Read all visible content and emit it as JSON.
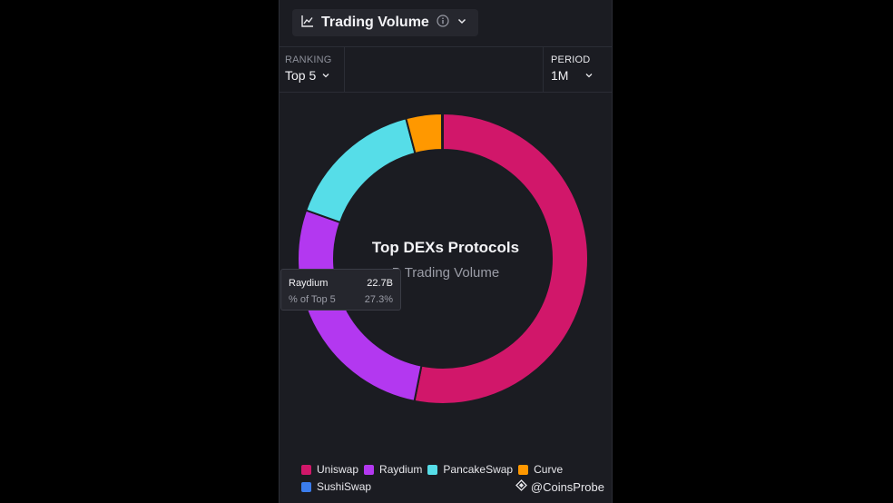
{
  "header": {
    "metric_label": "Trading Volume"
  },
  "controls": {
    "ranking_caption": "RANKING",
    "ranking_value": "Top 5",
    "period_caption": "PERIOD",
    "period_value": "1M"
  },
  "chart_data": {
    "type": "pie",
    "title": "Top DEXs Protocols",
    "subtitle": "B Trading Volume",
    "categories": [
      "Uniswap",
      "Raydium",
      "PancakeSwap",
      "Curve",
      "SushiSwap"
    ],
    "values": [
      53.2,
      27.3,
      15.5,
      4.0,
      0.1
    ],
    "colors": [
      "#d1176a",
      "#b338f0",
      "#56dde8",
      "#ff9800",
      "#3b7ded"
    ],
    "legend_position": "bottom"
  },
  "tooltip": {
    "name": "Raydium",
    "value": "22.7B",
    "pct_label": "% of Top 5",
    "pct_value": "27.3%"
  },
  "watermark": "@CoinsProbe"
}
